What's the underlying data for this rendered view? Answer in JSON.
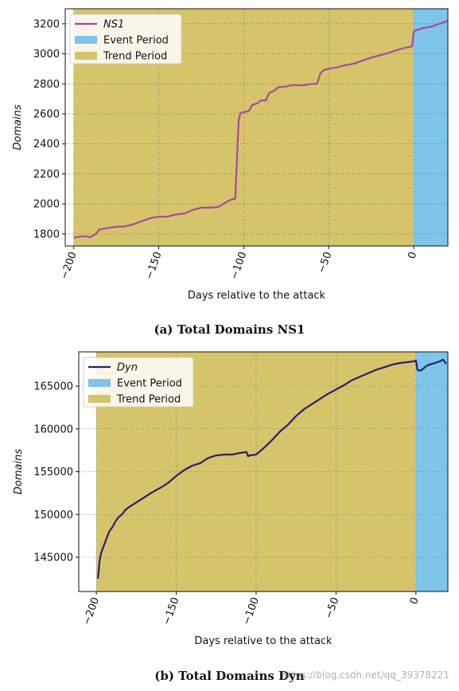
{
  "chart_data": [
    {
      "type": "line",
      "title": "",
      "caption": "(a) Total Domains NS1",
      "xlabel": "Days relative to the attack",
      "ylabel": "Domains",
      "xlim": [
        -205,
        20
      ],
      "ylim": [
        1720,
        3300
      ],
      "xticks": [
        -200,
        -150,
        -100,
        -50,
        0
      ],
      "yticks": [
        1800,
        2000,
        2200,
        2400,
        2600,
        2800,
        3000,
        3200
      ],
      "grid": true,
      "legend_position": "top-left",
      "legend": [
        "NS1",
        "Event Period",
        "Trend Period"
      ],
      "trend_period": [
        -200,
        0
      ],
      "event_period": [
        0,
        20
      ],
      "series": [
        {
          "name": "NS1",
          "color": "#a64a9c",
          "x": [
            -200,
            -195,
            -190,
            -187,
            -185,
            -180,
            -175,
            -170,
            -165,
            -160,
            -155,
            -150,
            -145,
            -140,
            -135,
            -130,
            -125,
            -120,
            -115,
            -110,
            -107,
            -105,
            -104,
            -103,
            -102,
            -101,
            -100,
            -97,
            -95,
            -92,
            -90,
            -87,
            -85,
            -82,
            -80,
            -78,
            -76,
            -74,
            -72,
            -70,
            -65,
            -60,
            -57,
            -56,
            -55,
            -53,
            -52,
            -50,
            -45,
            -40,
            -35,
            -30,
            -25,
            -20,
            -15,
            -10,
            -5,
            -1,
            0,
            1,
            5,
            10,
            15,
            20
          ],
          "y": [
            1775,
            1785,
            1780,
            1800,
            1830,
            1840,
            1848,
            1850,
            1865,
            1885,
            1905,
            1915,
            1915,
            1930,
            1935,
            1960,
            1975,
            1975,
            1980,
            2015,
            2030,
            2035,
            2300,
            2560,
            2605,
            2610,
            2610,
            2620,
            2660,
            2670,
            2690,
            2690,
            2740,
            2755,
            2775,
            2780,
            2780,
            2785,
            2790,
            2790,
            2790,
            2800,
            2800,
            2830,
            2870,
            2890,
            2895,
            2900,
            2910,
            2925,
            2935,
            2955,
            2975,
            2990,
            3005,
            3025,
            3040,
            3050,
            3150,
            3155,
            3170,
            3180,
            3200,
            3220
          ]
        }
      ]
    },
    {
      "type": "line",
      "title": "",
      "caption": "(b) Total Domains Dyn",
      "xlabel": "Days relative to the attack",
      "ylabel": "Domains",
      "xlim": [
        -211,
        20
      ],
      "ylim": [
        141000,
        169000
      ],
      "xticks": [
        -200,
        -150,
        -100,
        -50,
        0
      ],
      "yticks": [
        145000,
        150000,
        155000,
        160000,
        165000
      ],
      "grid": true,
      "legend_position": "top-left",
      "legend": [
        "Dyn",
        "Event Period",
        "Trend Period"
      ],
      "trend_period": [
        -200,
        0
      ],
      "event_period": [
        0,
        20
      ],
      "series": [
        {
          "name": "Dyn",
          "color": "#2a1f6e",
          "x": [
            -199,
            -198,
            -197,
            -196,
            -194,
            -192,
            -190,
            -188,
            -186,
            -184,
            -182,
            -180,
            -175,
            -170,
            -165,
            -160,
            -155,
            -150,
            -145,
            -140,
            -135,
            -130,
            -125,
            -120,
            -115,
            -110,
            -106,
            -105,
            -104,
            -100,
            -95,
            -90,
            -85,
            -80,
            -75,
            -70,
            -65,
            -60,
            -55,
            -50,
            -45,
            -40,
            -35,
            -30,
            -25,
            -20,
            -15,
            -10,
            -5,
            -1,
            0,
            1,
            3,
            5,
            7,
            10,
            12,
            15,
            17,
            19
          ],
          "y": [
            142500,
            144500,
            145500,
            146000,
            147000,
            148000,
            148500,
            149200,
            149700,
            150000,
            150500,
            150800,
            151400,
            152000,
            152600,
            153100,
            153700,
            154500,
            155200,
            155700,
            156000,
            156600,
            156900,
            157000,
            157000,
            157200,
            157300,
            156800,
            156900,
            157000,
            157800,
            158700,
            159700,
            160500,
            161500,
            162300,
            162900,
            163500,
            164100,
            164600,
            165100,
            165700,
            166100,
            166500,
            166900,
            167200,
            167500,
            167700,
            167800,
            167900,
            168000,
            166900,
            166800,
            167100,
            167400,
            167600,
            167700,
            167900,
            168100,
            167600
          ]
        }
      ]
    }
  ],
  "colors": {
    "trend": "#d6c46b",
    "event": "#7dc5ea",
    "grid": "#7f7f7f",
    "axis": "#111111"
  },
  "watermark": "https://blog.csdn.net/qq_39378221"
}
